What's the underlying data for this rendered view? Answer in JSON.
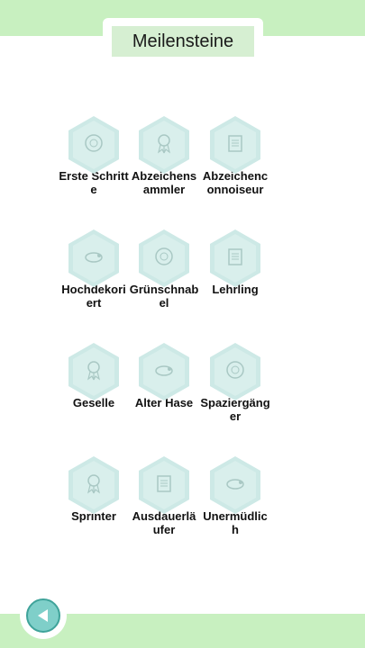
{
  "header": {
    "title": "Meilensteine"
  },
  "colors": {
    "background": "#c8f0c0",
    "title_box": "#d6efd2",
    "hexagon": "#cde9e6",
    "back_button": "#7fcfc9"
  },
  "badges": [
    {
      "label": "Erste Schritte",
      "icon": "medal-icon"
    },
    {
      "label": "Abzeichensammler",
      "icon": "ribbon-icon"
    },
    {
      "label": "Abzeichenconnoiseur",
      "icon": "book-icon"
    },
    {
      "label": "Hochdekoriert",
      "icon": "snail-icon"
    },
    {
      "label": "Grünschnabel",
      "icon": "medal-icon"
    },
    {
      "label": "Lehrling",
      "icon": "book-icon"
    },
    {
      "label": "Geselle",
      "icon": "ribbon-icon"
    },
    {
      "label": "Alter Hase",
      "icon": "snail-icon"
    },
    {
      "label": "Spaziergänger",
      "icon": "medal-icon"
    },
    {
      "label": "Sprinter",
      "icon": "ribbon-icon"
    },
    {
      "label": "Ausdauerläufer",
      "icon": "book-icon"
    },
    {
      "label": "Unermüdlich",
      "icon": "snail-icon"
    }
  ],
  "footer": {
    "back_icon": "back-arrow-icon"
  }
}
